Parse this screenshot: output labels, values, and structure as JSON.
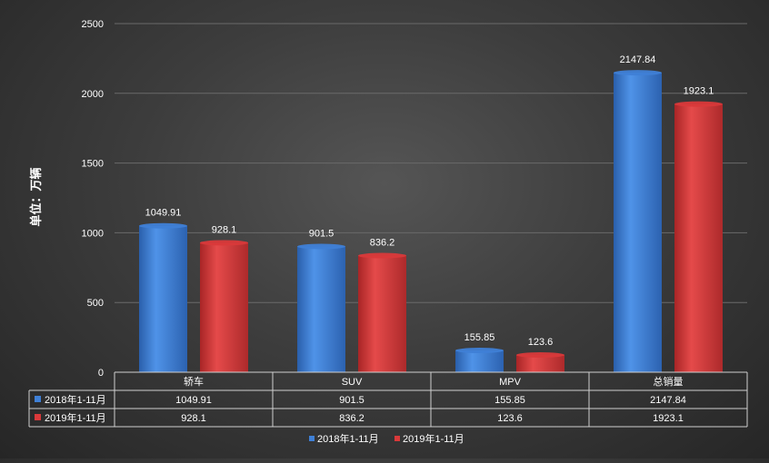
{
  "chart_data": {
    "type": "bar",
    "title": "",
    "ylabel": "单位：万辆",
    "xlabel": "",
    "ylim": [
      0,
      2500
    ],
    "yticks": [
      0,
      500,
      1000,
      1500,
      2000,
      2500
    ],
    "grid": true,
    "legend_position": "bottom",
    "categories": [
      "轿车",
      "SUV",
      "MPV",
      "总销量"
    ],
    "series": [
      {
        "name": "2018年1-11月",
        "color": "#3f80d6",
        "values": [
          1049.91,
          901.5,
          155.85,
          2147.84
        ],
        "labels": [
          "1049.91",
          "901.5",
          "155.85",
          "2147.84"
        ]
      },
      {
        "name": "2019年1-11月",
        "color": "#d9393a",
        "values": [
          928.1,
          836.2,
          123.6,
          1923.1
        ],
        "labels": [
          "928.1",
          "836.2",
          "123.6",
          "1923.1"
        ]
      }
    ],
    "data_table": true
  }
}
